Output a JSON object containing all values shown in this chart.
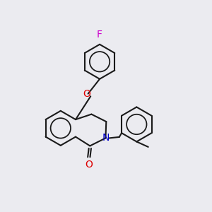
{
  "background_color": "#ebebf0",
  "bond_color": "#1a1a1a",
  "atom_colors": {
    "F": "#cc00cc",
    "O": "#dd0000",
    "N": "#0000cc",
    "O_carbonyl": "#dd0000"
  },
  "line_width": 1.5,
  "figsize": [
    3.0,
    3.0
  ],
  "dpi": 100,
  "xlim": [
    0,
    10
  ],
  "ylim": [
    0,
    10
  ]
}
